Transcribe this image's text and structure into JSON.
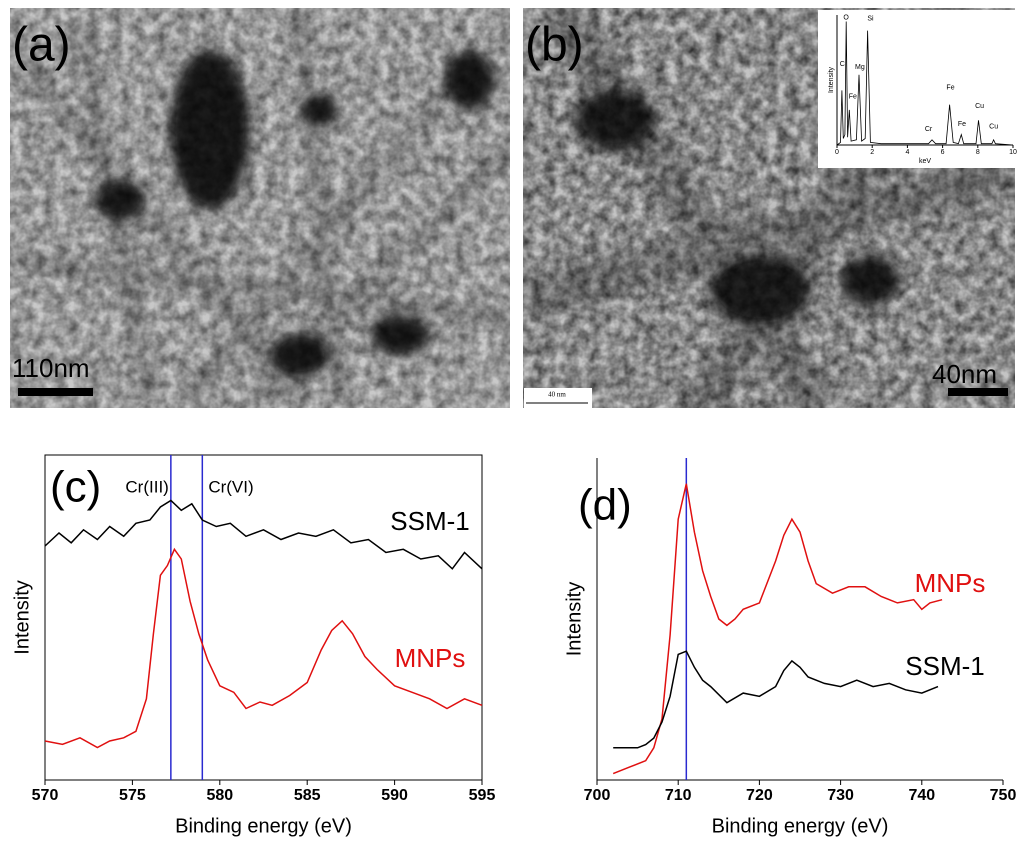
{
  "images": [
    {
      "label": "(a)",
      "scale_bar": "110nm"
    },
    {
      "label": "(b)",
      "scale_bar": "40nm",
      "ruler": "40 nm"
    }
  ],
  "chart_data": [
    {
      "type": "line",
      "title": "(c)",
      "xlabel": "Binding energy (eV)",
      "ylabel": "Intensity",
      "xlim": [
        570,
        595
      ],
      "xticks": [
        570,
        575,
        580,
        585,
        590,
        595
      ],
      "ylim": [
        0,
        100
      ],
      "vline_color": "#2a2ad0",
      "vlines": [
        {
          "value": 577.2,
          "label": "Cr(III)"
        },
        {
          "value": 579,
          "label": "Cr(VI)"
        }
      ],
      "series": [
        {
          "name": "SSM-1",
          "color": "#000000",
          "x": [
            570,
            570.8,
            571.5,
            572.2,
            573,
            573.7,
            574.5,
            575.2,
            576,
            576.6,
            577.2,
            577.8,
            578.4,
            579,
            579.8,
            580.6,
            581.5,
            582.5,
            583.5,
            584.5,
            585.5,
            586.5,
            587.5,
            588.5,
            589.5,
            590.5,
            591.5,
            592.5,
            593.3,
            594,
            595
          ],
          "values": [
            72,
            76,
            73,
            77,
            74,
            78,
            75,
            79,
            80,
            84,
            86,
            83,
            85,
            80,
            78,
            79,
            75,
            77,
            74,
            76,
            75,
            77,
            73,
            74,
            70,
            71,
            68,
            69,
            65,
            70,
            65
          ]
        },
        {
          "name": "MNPs",
          "color": "#e01010",
          "x": [
            570,
            571,
            572,
            573,
            573.7,
            574.5,
            575.2,
            575.8,
            576.2,
            576.6,
            577,
            577.4,
            577.8,
            578.3,
            578.8,
            579.3,
            580,
            580.8,
            581.5,
            582.3,
            583,
            584,
            585,
            585.8,
            586.4,
            587,
            587.6,
            588.3,
            589,
            590,
            591,
            592,
            593,
            594,
            595
          ],
          "values": [
            12,
            11,
            13,
            10,
            12,
            13,
            15,
            25,
            45,
            63,
            66,
            71,
            68,
            55,
            45,
            37,
            29,
            27,
            22,
            24,
            23,
            26,
            30,
            40,
            46,
            49,
            45,
            38,
            34,
            29,
            27,
            25,
            22,
            25,
            23
          ]
        }
      ]
    },
    {
      "type": "line",
      "title": "(d)",
      "xlabel": "Binding energy (eV)",
      "ylabel": "Intensity",
      "xlim": [
        700,
        750
      ],
      "xticks": [
        700,
        710,
        720,
        730,
        740,
        750
      ],
      "ylim": [
        0,
        100
      ],
      "vline_color": "#2a2ad0",
      "vlines": [
        {
          "value": 711
        }
      ],
      "series": [
        {
          "name": "MNPs",
          "color": "#e01010",
          "x": [
            702,
            704,
            706,
            707,
            708,
            709,
            710,
            711,
            712,
            713,
            714,
            715,
            716,
            717,
            718,
            720,
            722,
            723,
            724,
            725,
            726,
            727,
            729,
            731,
            733,
            735,
            737,
            739,
            740,
            741,
            742.5
          ],
          "values": [
            2,
            4,
            6,
            10,
            19,
            45,
            81,
            92,
            77,
            65,
            57,
            50,
            48,
            50,
            53,
            55,
            68,
            76,
            81,
            77,
            68,
            61,
            58,
            60,
            60,
            57,
            55,
            56,
            53,
            55,
            56
          ]
        },
        {
          "name": "SSM-1",
          "color": "#000000",
          "x": [
            702,
            703.5,
            705,
            706,
            707,
            708,
            709,
            710,
            711,
            712,
            713,
            714,
            716,
            718,
            720,
            722,
            723,
            724,
            725,
            726,
            728,
            730,
            732,
            734,
            736,
            738,
            740,
            742
          ],
          "values": [
            10,
            10,
            10,
            11,
            13,
            18,
            26,
            39,
            40,
            35,
            31,
            29,
            24,
            27,
            26,
            29,
            34,
            37,
            35,
            32,
            30,
            29,
            31,
            29,
            30,
            28,
            27,
            29
          ]
        }
      ]
    },
    {
      "type": "line",
      "xlabel": "keV",
      "ylabel": "Intensity",
      "xlim": [
        0,
        10
      ],
      "xticks": [
        0,
        2,
        4,
        6,
        8,
        10
      ],
      "ylim": [
        0,
        100
      ],
      "series": [
        {
          "color": "#000000",
          "x": [
            0,
            0.2,
            0.28,
            0.36,
            0.45,
            0.52,
            0.6,
            0.7,
            0.8,
            1.1,
            1.25,
            1.4,
            1.6,
            1.74,
            1.9,
            2.5,
            5.2,
            5.4,
            5.6,
            6.2,
            6.4,
            6.6,
            6.9,
            7.06,
            7.2,
            7.9,
            8.04,
            8.2,
            8.8,
            8.9,
            9.0,
            10
          ],
          "values": [
            0,
            2,
            42,
            5,
            8,
            95,
            6,
            27,
            3,
            4,
            54,
            3,
            5,
            88,
            2,
            1,
            1,
            4,
            1,
            1,
            31,
            2,
            1,
            8,
            1,
            1,
            19,
            1,
            1,
            4,
            1,
            0
          ]
        }
      ],
      "annotations": [
        {
          "text": "O",
          "x": 0.52,
          "y": 98
        },
        {
          "text": "C",
          "x": 0.3,
          "y": 62
        },
        {
          "text": "Fe",
          "x": 0.9,
          "y": 37
        },
        {
          "text": "Mg",
          "x": 1.3,
          "y": 60
        },
        {
          "text": "Si",
          "x": 1.9,
          "y": 97
        },
        {
          "text": "Cr",
          "x": 5.2,
          "y": 12
        },
        {
          "text": "Fe",
          "x": 6.45,
          "y": 44
        },
        {
          "text": "Fe",
          "x": 7.1,
          "y": 16
        },
        {
          "text": "Cu",
          "x": 8.1,
          "y": 30
        },
        {
          "text": "Cu",
          "x": 8.9,
          "y": 14
        }
      ]
    }
  ]
}
